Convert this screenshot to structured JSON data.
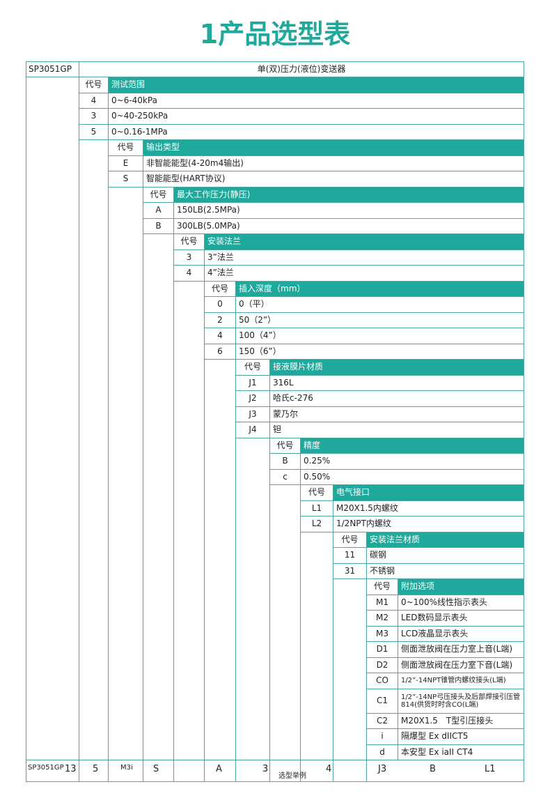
{
  "title": "1产品选型表",
  "model": "SP3051GP",
  "product": "单(双)压力(液位)变送器",
  "sections": [
    {
      "code_header": "代号",
      "header": "测试范围",
      "rows": [
        {
          "code": "4",
          "desc": "0~6-40kPa"
        },
        {
          "code": "3",
          "desc": "0~40-250kPa"
        },
        {
          "code": "5",
          "desc": "0~0.16-1MPa"
        }
      ]
    },
    {
      "code_header": "代号",
      "header": "输出类型",
      "rows": [
        {
          "code": "E",
          "desc": "非智能能型(4-20m4输出)"
        },
        {
          "code": "S",
          "desc": "智能能型(HART协议)"
        }
      ]
    },
    {
      "code_header": "代号",
      "header": "最大工作压力(静压)",
      "rows": [
        {
          "code": "A",
          "desc": "150LB(2.5MPa)"
        },
        {
          "code": "B",
          "desc": "300LB(5.0MPa)"
        }
      ]
    },
    {
      "code_header": "代号",
      "header": "安装法兰",
      "rows": [
        {
          "code": "3",
          "desc": "3”法兰"
        },
        {
          "code": "4",
          "desc": "4”法兰"
        }
      ]
    },
    {
      "code_header": "代号",
      "header": "插入深度（mm）",
      "rows": [
        {
          "code": "0",
          "desc": "0（平）"
        },
        {
          "code": "2",
          "desc": "50（2”）"
        },
        {
          "code": "4",
          "desc": "100（4”）"
        },
        {
          "code": "6",
          "desc": "150（6”）"
        }
      ]
    },
    {
      "code_header": "代号",
      "header": "接液膜片材质",
      "rows": [
        {
          "code": "J1",
          "desc": "316L"
        },
        {
          "code": "J2",
          "desc": "哈氏c-276"
        },
        {
          "code": "J3",
          "desc": "蒙乃尔"
        },
        {
          "code": "J4",
          "desc": "钽"
        }
      ]
    },
    {
      "code_header": "代号",
      "header": "精度",
      "rows": [
        {
          "code": "B",
          "desc": "0.25%"
        },
        {
          "code": "c",
          "desc": "0.50%"
        }
      ]
    },
    {
      "code_header": "代号",
      "header": "电气接口",
      "rows": [
        {
          "code": "L1",
          "desc": "M20X1.5内螺纹"
        },
        {
          "code": "L2",
          "desc": "1/2NPT内螺纹"
        }
      ]
    },
    {
      "code_header": "代号",
      "header": "安装法兰材质",
      "rows": [
        {
          "code": "11",
          "desc": "碳钢"
        },
        {
          "code": "31",
          "desc": "不锈钢"
        }
      ]
    },
    {
      "code_header": "代号",
      "header": "附加选项",
      "rows": [
        {
          "code": "M1",
          "desc": "0~100%线性指示表头"
        },
        {
          "code": "M2",
          "desc": "LED数码显示表头"
        },
        {
          "code": "M3",
          "desc": "LCD液晶显示表头"
        },
        {
          "code": "D1",
          "desc": "侧面泄放阀在压力室上音(L端)"
        },
        {
          "code": "D2",
          "desc": "侧面泄放阀在压力室下音(L端)"
        },
        {
          "code": "CO",
          "desc": "1/2”-14NPT锥管内螺纹接头(L端)"
        },
        {
          "code": "C1",
          "desc": "1/2”-14NP弓压接头及后部焊接引压管814(供货时时含CO(L端)"
        },
        {
          "code": "C2",
          "desc": "M20X1.5　T型引压接头"
        },
        {
          "code": "i",
          "desc": "隔爆型 Ex dIICT5"
        },
        {
          "code": "d",
          "desc": "本安型 Ex iaII CT4"
        }
      ]
    }
  ],
  "example": [
    "SP3051GP",
    "13",
    "5",
    "M3i",
    "S",
    "A",
    "3",
    "选型举例",
    "4",
    "J3",
    "B",
    "L1"
  ]
}
